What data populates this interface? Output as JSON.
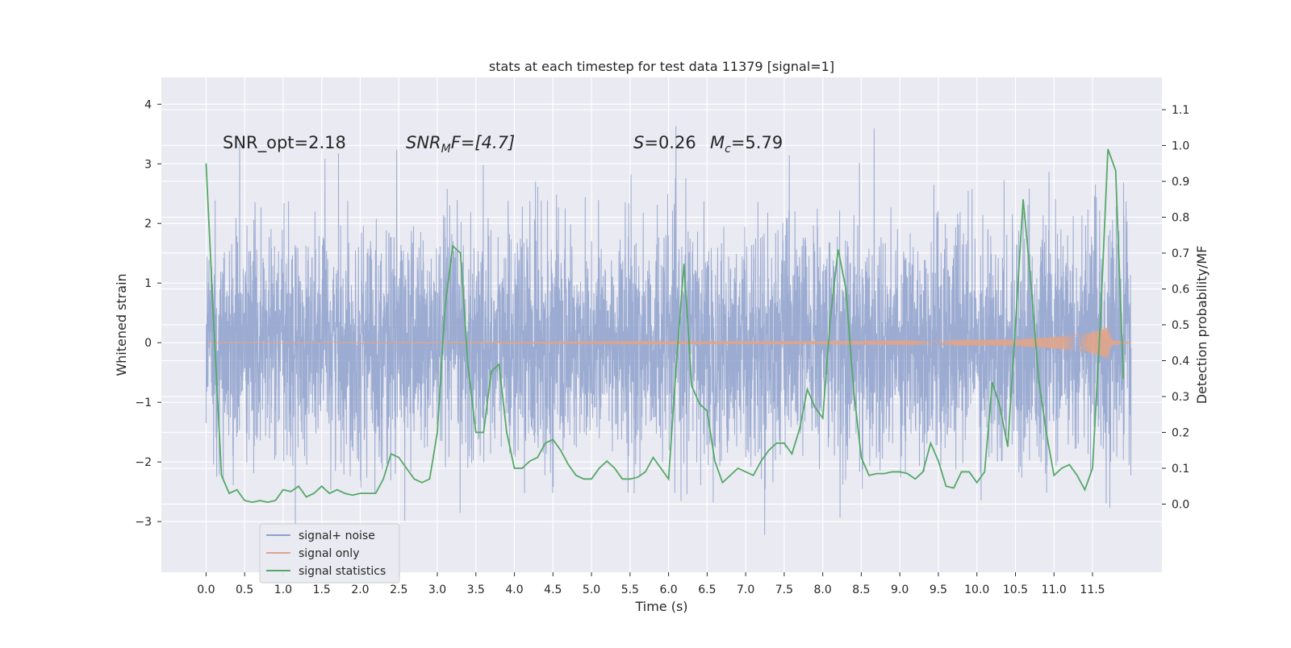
{
  "chart_data": {
    "type": "line",
    "title": "stats at each timestep for test data 11379 [signal=1]",
    "xlabel": "Time (s)",
    "ylabel": "Whitened strain",
    "ylabel_right": "Detection probability/MF",
    "xlim": [
      -0.58,
      12.4
    ],
    "ylim": [
      -3.85,
      4.45
    ],
    "ylim_right": [
      -0.19,
      1.19
    ],
    "x_ticks": [
      0.0,
      0.5,
      1.0,
      1.5,
      2.0,
      2.5,
      3.0,
      3.5,
      4.0,
      4.5,
      5.0,
      5.5,
      6.0,
      6.5,
      7.0,
      7.5,
      8.0,
      8.5,
      9.0,
      9.5,
      10.0,
      10.5,
      11.0,
      11.5
    ],
    "x_tick_labels": [
      "0.0",
      "0.5",
      "1.0",
      "1.5",
      "2.0",
      "2.5",
      "3.0",
      "3.5",
      "4.0",
      "4.5",
      "5.0",
      "5.5",
      "6.0",
      "6.5",
      "7.0",
      "7.5",
      "8.0",
      "8.5",
      "9.0",
      "9.5",
      "10.0",
      "10.5",
      "11.0",
      "11.5"
    ],
    "y_ticks": [
      -3,
      -2,
      -1,
      0,
      1,
      2,
      3,
      4
    ],
    "y_tick_labels": [
      "−3",
      "−2",
      "−1",
      "0",
      "1",
      "2",
      "3",
      "4"
    ],
    "y_ticks_right": [
      0.0,
      0.1,
      0.2,
      0.3,
      0.4,
      0.5,
      0.6,
      0.7,
      0.8,
      0.9,
      1.0,
      1.1
    ],
    "y_tick_labels_right": [
      "0.0",
      "0.1",
      "0.2",
      "0.3",
      "0.4",
      "0.5",
      "0.6",
      "0.7",
      "0.8",
      "0.9",
      "1.0",
      "1.1"
    ],
    "grid": true,
    "legend_position": "lower-left",
    "annotations": {
      "snr_opt": "SNR_opt=2.18",
      "snr_mf_a": "SNR",
      "snr_mf_b": "M",
      "snr_mf_c": "F=[4.7]",
      "s_a": "S",
      "s_b": "=0.26",
      "mc_a": "M",
      "mc_b": "c",
      "mc_c": "=5.79"
    },
    "series": [
      {
        "name": "signal+ noise",
        "axis": "left",
        "color": "#8da0cb",
        "time_range": [
          0.0,
          12.0
        ],
        "noise_std": 0.95,
        "envelope_note": "dense noise band, peaks mostly within ±2.5, extremes near 4.1 and -3.5"
      },
      {
        "name": "signal only",
        "axis": "left",
        "color": "#e1a48a",
        "time_range": [
          0.0,
          12.0
        ],
        "envelope_x": [
          0.0,
          6.0,
          8.0,
          9.5,
          10.5,
          11.0,
          11.4,
          11.6,
          11.7,
          11.75,
          12.0
        ],
        "envelope_amp": [
          0.01,
          0.02,
          0.03,
          0.04,
          0.06,
          0.1,
          0.15,
          0.22,
          0.28,
          0.05,
          0.0
        ]
      },
      {
        "name": "signal statistics",
        "axis": "right",
        "color": "#55a868",
        "x": [
          0.0,
          0.1,
          0.2,
          0.3,
          0.4,
          0.5,
          0.6,
          0.7,
          0.8,
          0.9,
          1.0,
          1.1,
          1.2,
          1.3,
          1.4,
          1.5,
          1.6,
          1.7,
          1.8,
          1.9,
          2.0,
          2.1,
          2.2,
          2.3,
          2.4,
          2.5,
          2.6,
          2.7,
          2.8,
          2.9,
          3.0,
          3.1,
          3.2,
          3.3,
          3.4,
          3.5,
          3.6,
          3.7,
          3.8,
          3.9,
          4.0,
          4.1,
          4.2,
          4.3,
          4.4,
          4.5,
          4.6,
          4.7,
          4.8,
          4.9,
          5.0,
          5.1,
          5.2,
          5.3,
          5.4,
          5.5,
          5.6,
          5.7,
          5.8,
          5.9,
          6.0,
          6.1,
          6.2,
          6.3,
          6.4,
          6.5,
          6.6,
          6.7,
          6.8,
          6.9,
          7.0,
          7.1,
          7.2,
          7.3,
          7.4,
          7.5,
          7.6,
          7.7,
          7.8,
          7.9,
          8.0,
          8.1,
          8.2,
          8.3,
          8.4,
          8.5,
          8.6,
          8.7,
          8.8,
          8.9,
          9.0,
          9.1,
          9.2,
          9.3,
          9.4,
          9.5,
          9.6,
          9.7,
          9.8,
          9.9,
          10.0,
          10.1,
          10.2,
          10.3,
          10.4,
          10.5,
          10.6,
          10.7,
          10.8,
          10.9,
          11.0,
          11.1,
          11.2,
          11.3,
          11.4,
          11.5,
          11.6,
          11.7,
          11.8,
          11.9
        ],
        "y": [
          0.95,
          0.5,
          0.08,
          0.03,
          0.04,
          0.01,
          0.005,
          0.01,
          0.005,
          0.01,
          0.04,
          0.035,
          0.05,
          0.02,
          0.03,
          0.05,
          0.03,
          0.04,
          0.03,
          0.025,
          0.03,
          0.03,
          0.03,
          0.07,
          0.14,
          0.13,
          0.1,
          0.07,
          0.06,
          0.07,
          0.2,
          0.55,
          0.72,
          0.7,
          0.38,
          0.2,
          0.2,
          0.37,
          0.39,
          0.2,
          0.1,
          0.1,
          0.12,
          0.13,
          0.17,
          0.18,
          0.15,
          0.11,
          0.08,
          0.07,
          0.07,
          0.1,
          0.12,
          0.1,
          0.07,
          0.07,
          0.075,
          0.09,
          0.13,
          0.1,
          0.07,
          0.39,
          0.67,
          0.33,
          0.28,
          0.26,
          0.12,
          0.06,
          0.08,
          0.1,
          0.09,
          0.08,
          0.12,
          0.15,
          0.17,
          0.17,
          0.14,
          0.21,
          0.32,
          0.27,
          0.24,
          0.52,
          0.71,
          0.6,
          0.32,
          0.13,
          0.08,
          0.085,
          0.085,
          0.09,
          0.09,
          0.085,
          0.07,
          0.09,
          0.17,
          0.12,
          0.05,
          0.045,
          0.09,
          0.09,
          0.06,
          0.09,
          0.34,
          0.27,
          0.16,
          0.5,
          0.85,
          0.62,
          0.35,
          0.2,
          0.08,
          0.1,
          0.11,
          0.08,
          0.04,
          0.1,
          0.5,
          0.99,
          0.93,
          0.35
        ]
      }
    ]
  }
}
